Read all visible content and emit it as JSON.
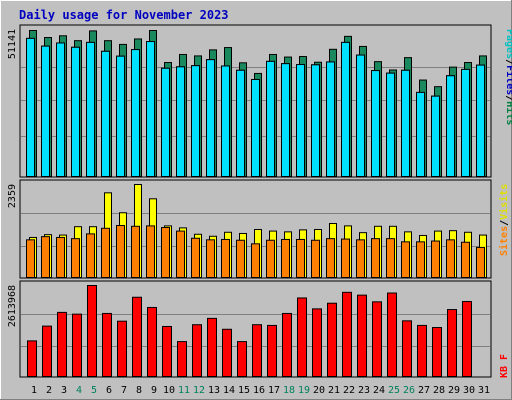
{
  "chart_data": {
    "type": "bar",
    "title": "Daily usage for November 2023",
    "categories": [
      "1",
      "2",
      "3",
      "4",
      "5",
      "6",
      "7",
      "8",
      "9",
      "10",
      "11",
      "12",
      "13",
      "14",
      "15",
      "16",
      "17",
      "18",
      "19",
      "20",
      "21",
      "22",
      "23",
      "24",
      "25",
      "26",
      "27",
      "28",
      "29",
      "30",
      "31"
    ],
    "weekend_days": [
      "4",
      "5",
      "11",
      "12",
      "18",
      "19",
      "25",
      "26"
    ],
    "panels": [
      {
        "id": "hits-files-pages",
        "ymax_label": "51141",
        "ymax": 51141,
        "legend": [
          "Pages",
          "Files",
          "Hits"
        ],
        "legend_colors": [
          "#00c0c0",
          "#0000c0",
          "#008040"
        ],
        "series": [
          {
            "name": "Hits",
            "color": "#1a8a5e",
            "values": [
              51141,
              48700,
              49300,
              47600,
              51000,
              47600,
              46300,
              48200,
              51141,
              40000,
              42800,
              42300,
              44400,
              45200,
              39900,
              36200,
              42800,
              41900,
              42100,
              40100,
              44600,
              49100,
              45600,
              40300,
              37400,
              41700,
              33900,
              31600,
              38400,
              40000,
              42300
            ]
          },
          {
            "name": "Files",
            "color": "#00e0ff",
            "values": [
              48400,
              45700,
              46800,
              45300,
              47000,
              43900,
              42200,
              44500,
              47300,
              38000,
              38500,
              38900,
              41000,
              38800,
              37300,
              34100,
              40400,
              39600,
              39300,
              39200,
              40200,
              47000,
              42600,
              37200,
              36300,
              37300,
              29600,
              28300,
              35400,
              37600,
              39100
            ]
          },
          {
            "name": "Pages",
            "color": "#00e0ff",
            "values": [
              48400,
              45700,
              46800,
              45300,
              47000,
              43900,
              42200,
              44500,
              47300,
              38000,
              38500,
              38900,
              41000,
              38800,
              37300,
              34100,
              40400,
              39600,
              39300,
              39200,
              40200,
              47000,
              42600,
              37200,
              36300,
              37300,
              29600,
              28300,
              35400,
              37600,
              39100
            ]
          }
        ]
      },
      {
        "id": "visits-sites",
        "ymax_label": "2359",
        "ymax": 2359,
        "legend": [
          "Sites",
          "Visits"
        ],
        "legend_colors": [
          "#ff8000",
          "#e0e000"
        ],
        "series": [
          {
            "name": "Visits",
            "color": "#ffff00",
            "values": [
              1030,
              1100,
              1090,
              1300,
              1300,
              2150,
              1650,
              2359,
              2000,
              1320,
              1270,
              1110,
              1060,
              1160,
              1130,
              1230,
              1190,
              1170,
              1220,
              1230,
              1380,
              1320,
              1150,
              1310,
              1310,
              1170,
              1080,
              1190,
              1200,
              1160,
              1090
            ]
          },
          {
            "name": "Sites",
            "color": "#ff8000",
            "values": [
              970,
              1050,
              1030,
              1000,
              1120,
              1260,
              1330,
              1310,
              1320,
              1280,
              1190,
              1010,
              970,
              980,
              960,
              870,
              960,
              980,
              980,
              960,
              1000,
              990,
              970,
              1000,
              1000,
              920,
              920,
              940,
              970,
              910,
              780
            ]
          }
        ]
      },
      {
        "id": "kbytes",
        "ymax_label": "2613968",
        "ymax": 2613968,
        "legend": [
          "KB F"
        ],
        "legend_colors": [
          "#ff0000"
        ],
        "series": [
          {
            "name": "KB F",
            "color": "#ff0000",
            "values": [
              1040000,
              1460000,
              1850000,
              1800000,
              2613968,
              1820000,
              1600000,
              2280000,
              1990000,
              1450000,
              1020000,
              1500000,
              1680000,
              1370000,
              1020000,
              1500000,
              1480000,
              1820000,
              2260000,
              1950000,
              2110000,
              2420000,
              2340000,
              2150000,
              2400000,
              1610000,
              1480000,
              1420000,
              1930000,
              2160000,
              0
            ]
          }
        ]
      }
    ]
  }
}
